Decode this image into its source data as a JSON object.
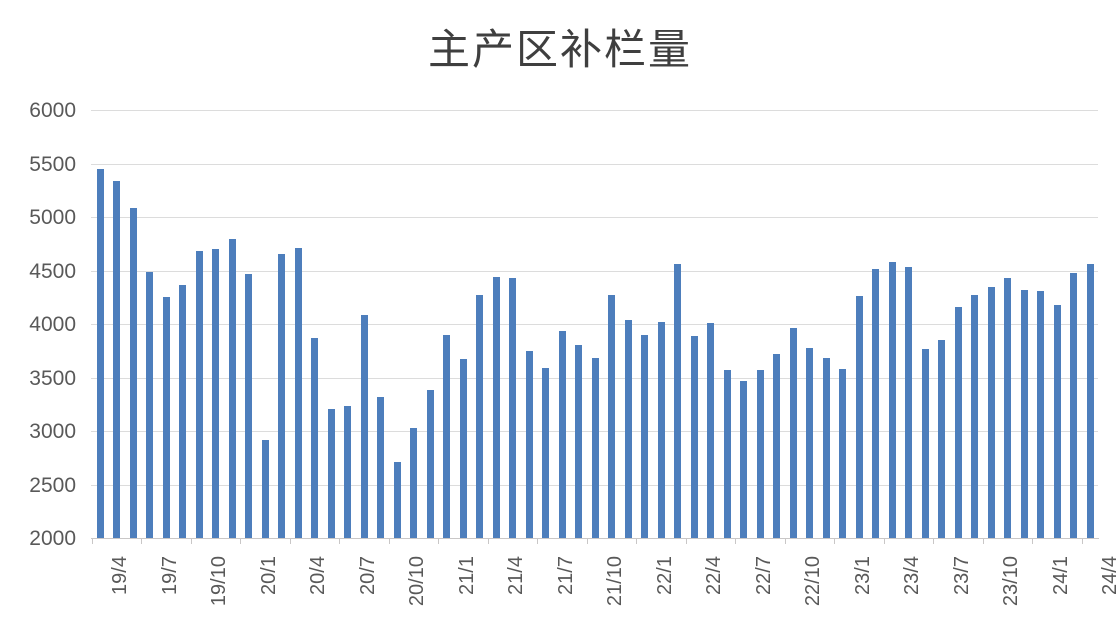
{
  "chart_data": {
    "type": "bar",
    "title": "主产区补栏量",
    "xlabel": "",
    "ylabel": "",
    "ylim": [
      2000,
      6000
    ],
    "ytick_interval": 500,
    "yticks": [
      6000,
      5500,
      5000,
      4500,
      4000,
      3500,
      3000,
      2500,
      2000
    ],
    "xtick_labels": [
      "19/4",
      "19/7",
      "19/10",
      "20/1",
      "20/4",
      "20/7",
      "20/10",
      "21/1",
      "21/4",
      "21/7",
      "21/10",
      "22/1",
      "22/4",
      "22/7",
      "22/10",
      "23/1",
      "23/4",
      "23/7",
      "23/10",
      "24/1",
      "24/4"
    ],
    "xtick_label_every_n_bars": 3,
    "grid": true,
    "legend_position": "none",
    "bar_color": "#4d7ebc",
    "gridline_color": "#dcdcdc",
    "axis_color": "#c9c7c7",
    "tick_label_color": "#595959",
    "title_color": "#3f3f3f",
    "values": [
      5450,
      5340,
      5080,
      4490,
      4250,
      4360,
      4680,
      4700,
      4790,
      4470,
      2920,
      4650,
      4710,
      3870,
      3210,
      3230,
      4080,
      3320,
      2710,
      3030,
      3380,
      3900,
      3670,
      4270,
      4440,
      4430,
      3750,
      3590,
      3930,
      3800,
      3680,
      4270,
      4040,
      3900,
      4020,
      4560,
      3890,
      4010,
      3570,
      3470,
      3570,
      3720,
      3960,
      3780,
      3680,
      3580,
      4260,
      4510,
      4580,
      4530,
      3770,
      3850,
      4160,
      4270,
      4350,
      4430,
      4320,
      4310,
      4180,
      4480,
      4560
    ]
  }
}
